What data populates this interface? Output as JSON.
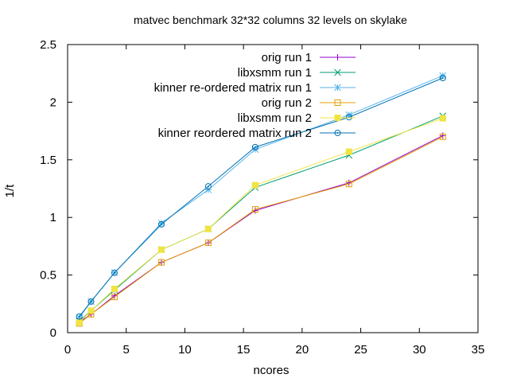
{
  "chart_data": {
    "type": "line",
    "title": "matvec benchmark 32*32 columns 32 levels on skylake",
    "xlabel": "ncores",
    "ylabel": "1/t",
    "xlim": [
      0,
      35
    ],
    "ylim": [
      0,
      2.5
    ],
    "xticks": [
      0,
      5,
      10,
      15,
      20,
      25,
      30,
      35
    ],
    "yticks": [
      0,
      0.5,
      1,
      1.5,
      2,
      2.5
    ],
    "x_tick_labels": [
      "0",
      "5",
      "10",
      "15",
      "20",
      "25",
      "30",
      "35"
    ],
    "y_tick_labels": [
      "0",
      "0.5",
      "1",
      "1.5",
      "2",
      "2.5"
    ],
    "grid": false,
    "legend_position": "top-right",
    "x": [
      1,
      2,
      4,
      8,
      12,
      16,
      24,
      32
    ],
    "series": [
      {
        "name": "orig run 1",
        "color": "#9400d3",
        "marker": "plus",
        "values": [
          0.09,
          0.16,
          0.32,
          0.61,
          0.78,
          1.06,
          1.3,
          1.71
        ]
      },
      {
        "name": "libxsmm run 1",
        "color": "#009e73",
        "marker": "cross",
        "values": [
          0.1,
          0.19,
          0.37,
          0.72,
          0.9,
          1.26,
          1.54,
          1.88
        ]
      },
      {
        "name": "kinner re-ordered matrix run 1",
        "color": "#56b4e9",
        "marker": "star",
        "values": [
          0.13,
          0.27,
          0.52,
          0.95,
          1.24,
          1.59,
          1.89,
          2.23
        ]
      },
      {
        "name": "orig run 2",
        "color": "#e69f00",
        "marker": "open-square",
        "values": [
          0.08,
          0.16,
          0.31,
          0.61,
          0.78,
          1.07,
          1.29,
          1.7
        ]
      },
      {
        "name": "libxsmm run 2",
        "color": "#f0e442",
        "marker": "filled-square",
        "values": [
          0.09,
          0.19,
          0.38,
          0.72,
          0.9,
          1.28,
          1.57,
          1.86
        ]
      },
      {
        "name": "kinner reordered matrix run 2",
        "color": "#0072b2",
        "marker": "open-circle-dot",
        "values": [
          0.14,
          0.27,
          0.52,
          0.94,
          1.27,
          1.61,
          1.87,
          2.21
        ]
      }
    ]
  }
}
